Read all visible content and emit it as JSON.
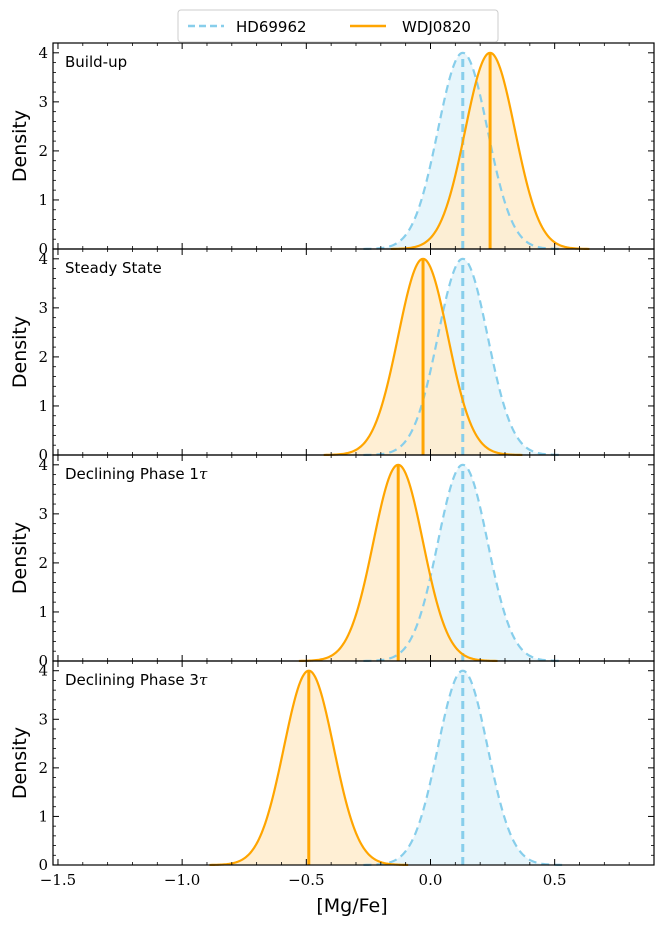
{
  "chart_data": {
    "type": "area",
    "xlabel": "[Mg/Fe]",
    "ylabel": "Density",
    "xlim": [
      -1.52,
      0.9
    ],
    "ylim": [
      0,
      4.2
    ],
    "x_ticks": [
      -1.5,
      -1.0,
      -0.5,
      0.0,
      0.5
    ],
    "x_tick_labels": [
      "−1.5",
      "−1.0",
      "−0.5",
      "0.0",
      "0.5"
    ],
    "y_ticks": [
      0,
      1,
      2,
      3,
      4
    ],
    "y_tick_labels": [
      "0",
      "1",
      "2",
      "3",
      "4"
    ],
    "legend": {
      "placement": "top-center",
      "entries": [
        {
          "label": "HD69962",
          "color": "#87ceeb",
          "style": "dashed"
        },
        {
          "label": "WDJ0820",
          "color": "#ffa500",
          "style": "solid"
        }
      ]
    },
    "colors": {
      "hd": "#87ceeb",
      "hd_fill": "#e2f3fa",
      "wd": "#ffa500",
      "wd_fill": "#ffeccc"
    },
    "panels": [
      {
        "label": "Build-up",
        "label_math": "",
        "series": [
          {
            "name": "HD69962",
            "type": "gaussian",
            "mean": 0.13,
            "sigma": 0.1,
            "peak": 4.0,
            "median": 0.13
          },
          {
            "name": "WDJ0820",
            "type": "gaussian",
            "mean": 0.24,
            "sigma": 0.1,
            "peak": 4.0,
            "median": 0.24
          }
        ]
      },
      {
        "label": "Steady State",
        "label_math": "",
        "series": [
          {
            "name": "HD69962",
            "type": "gaussian",
            "mean": 0.13,
            "sigma": 0.1,
            "peak": 4.0,
            "median": 0.13
          },
          {
            "name": "WDJ0820",
            "type": "gaussian",
            "mean": -0.03,
            "sigma": 0.1,
            "peak": 4.0,
            "median": -0.03
          }
        ]
      },
      {
        "label": "Declining Phase 1",
        "label_math": "τ",
        "series": [
          {
            "name": "HD69962",
            "type": "gaussian",
            "mean": 0.13,
            "sigma": 0.1,
            "peak": 4.0,
            "median": 0.13
          },
          {
            "name": "WDJ0820",
            "type": "gaussian",
            "mean": -0.13,
            "sigma": 0.1,
            "peak": 4.0,
            "median": -0.13
          }
        ]
      },
      {
        "label": "Declining Phase 3",
        "label_math": "τ",
        "series": [
          {
            "name": "HD69962",
            "type": "gaussian",
            "mean": 0.13,
            "sigma": 0.1,
            "peak": 4.0,
            "median": 0.13
          },
          {
            "name": "WDJ0820",
            "type": "gaussian",
            "mean": -0.49,
            "sigma": 0.1,
            "peak": 4.0,
            "median": -0.49
          }
        ]
      }
    ]
  }
}
